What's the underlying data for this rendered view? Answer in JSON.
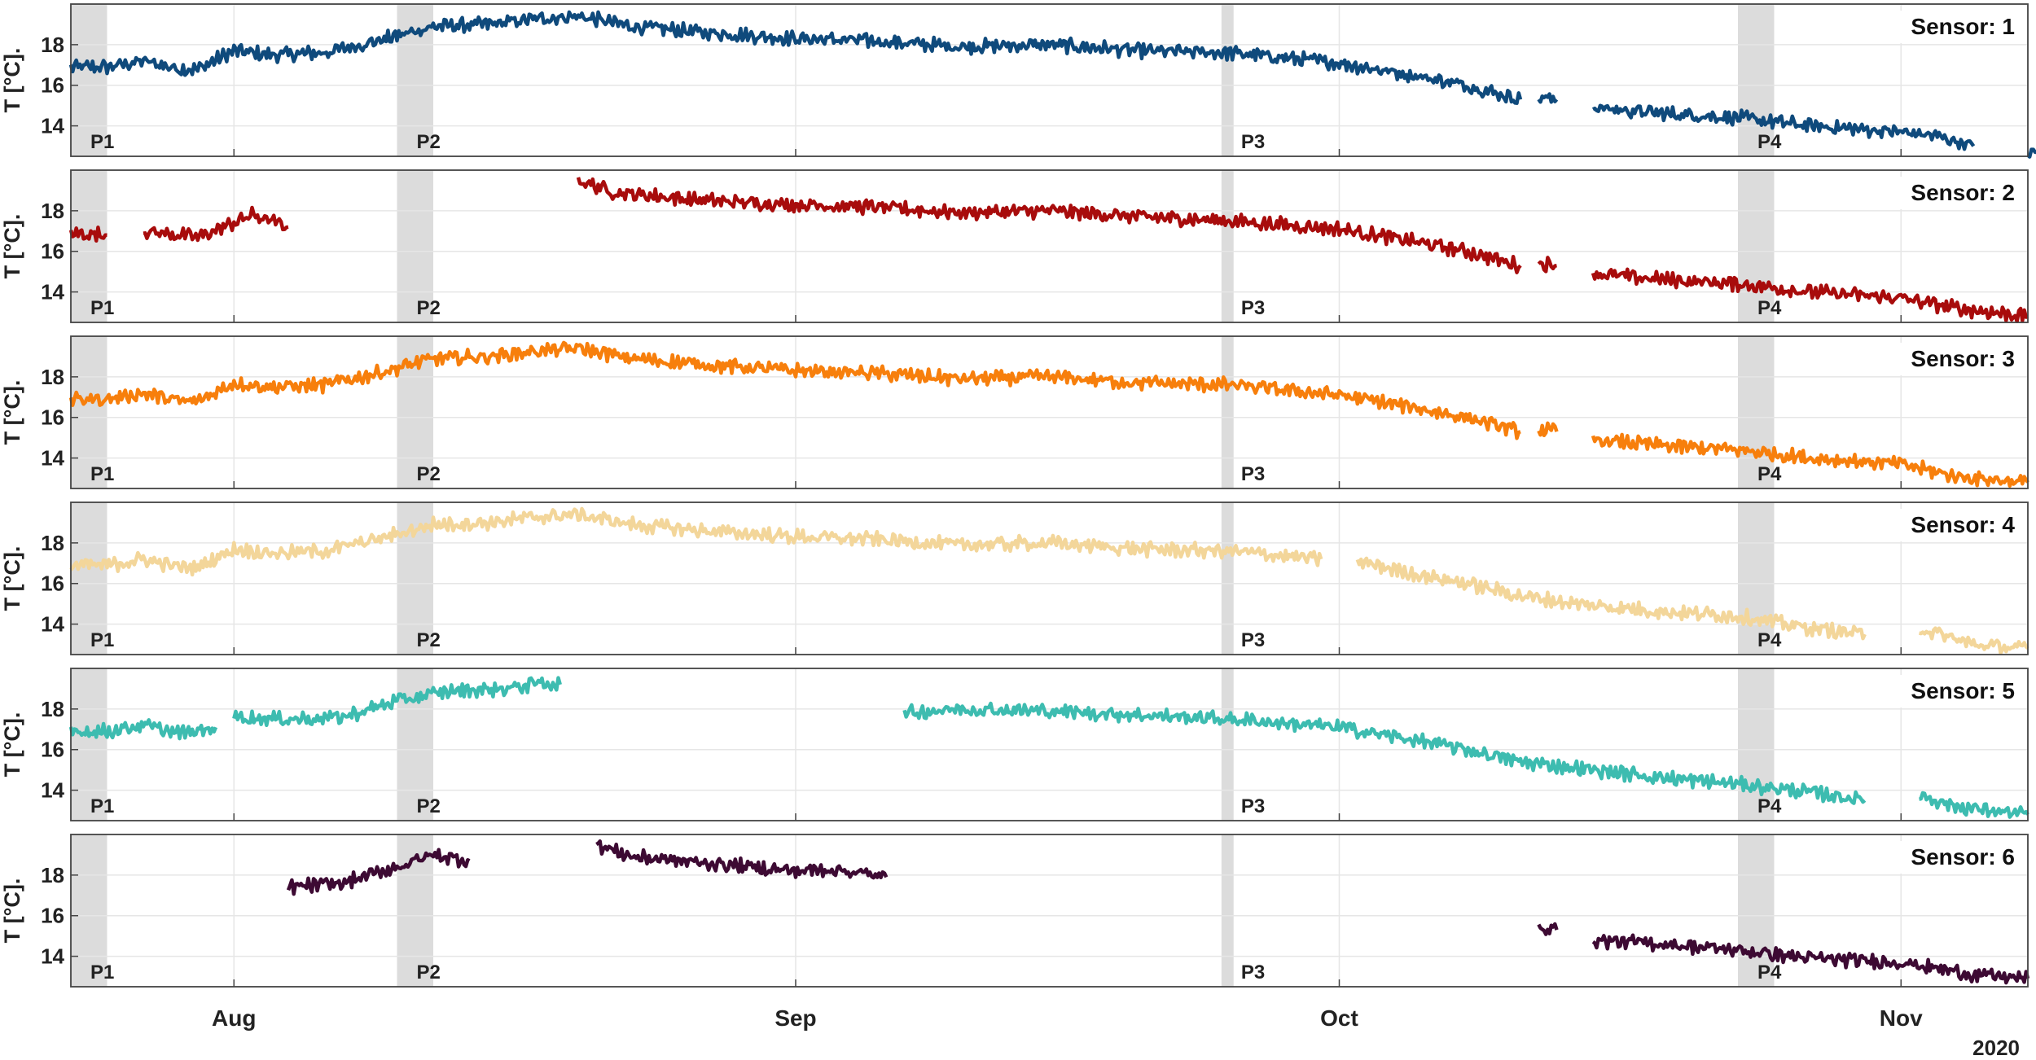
{
  "chart_data": {
    "type": "line",
    "layout": "stacked-subplots",
    "ylabel": "T [°C].",
    "year_label": "2020",
    "x_range": [
      "2020-07-23",
      "2020-11-08"
    ],
    "x_ticks": [
      {
        "label": "Aug",
        "date": "2020-08-01"
      },
      {
        "label": "Sep",
        "date": "2020-09-01"
      },
      {
        "label": "Oct",
        "date": "2020-10-01"
      },
      {
        "label": "Nov",
        "date": "2020-11-01"
      }
    ],
    "ylim": [
      12.5,
      20
    ],
    "y_ticks": [
      14,
      16,
      18
    ],
    "grid": true,
    "periods": [
      {
        "label": "P1",
        "start": "2020-07-23",
        "end": "2020-07-25"
      },
      {
        "label": "P2",
        "start": "2020-08-10",
        "end": "2020-08-12"
      },
      {
        "label": "P3",
        "start": "2020-09-24 12:00",
        "end": "2020-09-25 04:00"
      },
      {
        "label": "P4",
        "start": "2020-10-23",
        "end": "2020-10-25"
      }
    ],
    "subplots": [
      {
        "title": "Sensor: 1",
        "color": "#0f4a7c",
        "segments": [
          [
            [
              "2020-07-23",
              16.9
            ],
            [
              "2020-07-25",
              16.9
            ],
            [
              "2020-07-27",
              17.2
            ],
            [
              "2020-07-29",
              16.8
            ],
            [
              "2020-07-30",
              16.8
            ],
            [
              "2020-08-01",
              17.7
            ],
            [
              "2020-08-03",
              17.5
            ],
            [
              "2020-08-06",
              17.6
            ],
            [
              "2020-08-09",
              18.2
            ],
            [
              "2020-08-12",
              18.9
            ],
            [
              "2020-08-15",
              19.0
            ],
            [
              "2020-08-18",
              19.3
            ],
            [
              "2020-08-20",
              19.4
            ],
            [
              "2020-08-23",
              18.9
            ],
            [
              "2020-08-27",
              18.6
            ],
            [
              "2020-09-01",
              18.3
            ],
            [
              "2020-09-05",
              18.2
            ],
            [
              "2020-09-10",
              17.9
            ],
            [
              "2020-09-15",
              18.0
            ],
            [
              "2020-09-20",
              17.7
            ],
            [
              "2020-09-25",
              17.6
            ],
            [
              "2020-10-01",
              17.1
            ],
            [
              "2020-10-05",
              16.5
            ],
            [
              "2020-10-08",
              16.0
            ],
            [
              "2020-10-11",
              15.3
            ]
          ],
          [
            [
              "2020-10-12",
              15.4
            ],
            [
              "2020-10-13",
              15.3
            ]
          ],
          [
            [
              "2020-10-15",
              14.9
            ],
            [
              "2020-10-19",
              14.6
            ],
            [
              "2020-10-23",
              14.4
            ],
            [
              "2020-10-27",
              14.0
            ],
            [
              "2020-11-01",
              13.7
            ],
            [
              "2020-11-03",
              13.5
            ],
            [
              "2020-11-05",
              13.0
            ]
          ],
          [
            [
              "2020-11-08",
              12.7
            ],
            [
              "2020-11-08 12:00",
              12.7
            ]
          ]
        ]
      },
      {
        "title": "Sensor: 2",
        "color": "#a80c0c",
        "segments": [
          [
            [
              "2020-07-23",
              16.9
            ],
            [
              "2020-07-25",
              16.8
            ]
          ],
          [
            [
              "2020-07-27",
              17.0
            ],
            [
              "2020-07-30",
              16.7
            ],
            [
              "2020-08-01",
              17.4
            ],
            [
              "2020-08-02",
              17.8
            ],
            [
              "2020-08-04",
              17.2
            ]
          ],
          [
            [
              "2020-08-20",
              19.5
            ],
            [
              "2020-08-22",
              18.9
            ],
            [
              "2020-08-27",
              18.5
            ],
            [
              "2020-09-01",
              18.3
            ],
            [
              "2020-09-05",
              18.2
            ],
            [
              "2020-09-10",
              17.9
            ],
            [
              "2020-09-15",
              18.0
            ],
            [
              "2020-09-20",
              17.7
            ],
            [
              "2020-09-25",
              17.5
            ],
            [
              "2020-10-01",
              17.1
            ],
            [
              "2020-10-05",
              16.5
            ],
            [
              "2020-10-08",
              16.0
            ],
            [
              "2020-10-11",
              15.3
            ]
          ],
          [
            [
              "2020-10-12",
              15.4
            ],
            [
              "2020-10-13",
              15.3
            ]
          ],
          [
            [
              "2020-10-15",
              14.9
            ],
            [
              "2020-10-19",
              14.6
            ],
            [
              "2020-10-23",
              14.4
            ],
            [
              "2020-10-27",
              14.0
            ],
            [
              "2020-11-01",
              13.7
            ],
            [
              "2020-11-04",
              13.2
            ],
            [
              "2020-11-08",
              12.8
            ]
          ]
        ]
      },
      {
        "title": "Sensor: 3",
        "color": "#f77f0c",
        "segments": [
          [
            [
              "2020-07-23",
              16.9
            ],
            [
              "2020-07-25",
              16.9
            ],
            [
              "2020-07-27",
              17.2
            ],
            [
              "2020-07-29",
              16.8
            ],
            [
              "2020-07-30",
              16.8
            ],
            [
              "2020-08-01",
              17.7
            ],
            [
              "2020-08-03",
              17.5
            ],
            [
              "2020-08-06",
              17.6
            ],
            [
              "2020-08-09",
              18.2
            ],
            [
              "2020-08-12",
              18.9
            ],
            [
              "2020-08-15",
              19.0
            ],
            [
              "2020-08-18",
              19.3
            ],
            [
              "2020-08-20",
              19.4
            ],
            [
              "2020-08-23",
              18.9
            ],
            [
              "2020-08-27",
              18.6
            ],
            [
              "2020-09-01",
              18.3
            ],
            [
              "2020-09-05",
              18.2
            ],
            [
              "2020-09-10",
              17.9
            ],
            [
              "2020-09-15",
              18.0
            ],
            [
              "2020-09-20",
              17.7
            ],
            [
              "2020-09-25",
              17.6
            ],
            [
              "2020-10-01",
              17.1
            ],
            [
              "2020-10-05",
              16.5
            ],
            [
              "2020-10-08",
              16.0
            ],
            [
              "2020-10-11",
              15.3
            ]
          ],
          [
            [
              "2020-10-12",
              15.4
            ],
            [
              "2020-10-13",
              15.3
            ]
          ],
          [
            [
              "2020-10-15",
              14.9
            ],
            [
              "2020-10-19",
              14.6
            ],
            [
              "2020-10-23",
              14.4
            ],
            [
              "2020-10-27",
              14.0
            ],
            [
              "2020-11-01",
              13.7
            ],
            [
              "2020-11-04",
              13.1
            ],
            [
              "2020-11-08",
              12.8
            ]
          ]
        ]
      },
      {
        "title": "Sensor: 4",
        "color": "#f3d69a",
        "segments": [
          [
            [
              "2020-07-23",
              16.9
            ],
            [
              "2020-07-25",
              16.9
            ],
            [
              "2020-07-27",
              17.2
            ],
            [
              "2020-07-29",
              16.8
            ],
            [
              "2020-07-30",
              16.8
            ],
            [
              "2020-08-01",
              17.7
            ],
            [
              "2020-08-03",
              17.5
            ],
            [
              "2020-08-06",
              17.6
            ],
            [
              "2020-08-09",
              18.2
            ],
            [
              "2020-08-12",
              18.9
            ],
            [
              "2020-08-15",
              19.0
            ],
            [
              "2020-08-18",
              19.3
            ],
            [
              "2020-08-20",
              19.4
            ],
            [
              "2020-08-23",
              18.9
            ],
            [
              "2020-08-27",
              18.6
            ],
            [
              "2020-09-01",
              18.3
            ],
            [
              "2020-09-05",
              18.2
            ],
            [
              "2020-09-10",
              17.9
            ],
            [
              "2020-09-15",
              18.0
            ],
            [
              "2020-09-20",
              17.7
            ],
            [
              "2020-09-25",
              17.6
            ],
            [
              "2020-09-30",
              17.2
            ]
          ],
          [
            [
              "2020-10-02",
              17.1
            ],
            [
              "2020-10-05",
              16.5
            ],
            [
              "2020-10-08",
              16.0
            ],
            [
              "2020-10-11",
              15.4
            ],
            [
              "2020-10-14",
              15.0
            ],
            [
              "2020-10-19",
              14.6
            ],
            [
              "2020-10-23",
              14.4
            ],
            [
              "2020-10-27",
              13.8
            ],
            [
              "2020-10-30",
              13.5
            ]
          ],
          [
            [
              "2020-11-02",
              13.8
            ],
            [
              "2020-11-05",
              13.0
            ],
            [
              "2020-11-08",
              12.8
            ]
          ]
        ]
      },
      {
        "title": "Sensor: 5",
        "color": "#3dbcb0",
        "segments": [
          [
            [
              "2020-07-23",
              16.9
            ],
            [
              "2020-07-25",
              16.9
            ],
            [
              "2020-07-27",
              17.2
            ],
            [
              "2020-07-29",
              16.8
            ],
            [
              "2020-07-30",
              16.9
            ],
            [
              "2020-07-31",
              17.1
            ]
          ],
          [
            [
              "2020-08-01",
              17.6
            ],
            [
              "2020-08-04",
              17.5
            ],
            [
              "2020-08-07",
              17.6
            ],
            [
              "2020-08-10",
              18.4
            ],
            [
              "2020-08-13",
              18.9
            ],
            [
              "2020-08-16",
              19.0
            ],
            [
              "2020-08-18",
              19.3
            ],
            [
              "2020-08-19",
              19.2
            ]
          ],
          [
            [
              "2020-09-07",
              17.8
            ],
            [
              "2020-09-10",
              18.0
            ],
            [
              "2020-09-15",
              17.9
            ],
            [
              "2020-09-20",
              17.7
            ],
            [
              "2020-09-25",
              17.5
            ],
            [
              "2020-10-01",
              17.1
            ],
            [
              "2020-10-05",
              16.5
            ],
            [
              "2020-10-08",
              16.0
            ],
            [
              "2020-10-11",
              15.4
            ],
            [
              "2020-10-14",
              15.1
            ],
            [
              "2020-10-19",
              14.6
            ],
            [
              "2020-10-23",
              14.3
            ],
            [
              "2020-10-27",
              13.9
            ],
            [
              "2020-10-30",
              13.5
            ]
          ],
          [
            [
              "2020-11-02",
              13.8
            ],
            [
              "2020-11-04",
              13.2
            ],
            [
              "2020-11-08",
              12.8
            ]
          ]
        ]
      },
      {
        "title": "Sensor: 6",
        "color": "#3d0a33",
        "segments": [
          [
            [
              "2020-08-04",
              17.4
            ],
            [
              "2020-08-07",
              17.6
            ],
            [
              "2020-08-10",
              18.4
            ],
            [
              "2020-08-12",
              19.0
            ],
            [
              "2020-08-14",
              18.7
            ]
          ],
          [
            [
              "2020-08-21",
              19.5
            ],
            [
              "2020-08-23",
              18.9
            ],
            [
              "2020-08-27",
              18.6
            ],
            [
              "2020-09-01",
              18.2
            ],
            [
              "2020-09-03",
              18.3
            ],
            [
              "2020-09-06",
              17.9
            ]
          ],
          [
            [
              "2020-10-12",
              15.5
            ],
            [
              "2020-10-13",
              15.3
            ]
          ],
          [
            [
              "2020-10-15",
              14.8
            ],
            [
              "2020-10-19",
              14.6
            ],
            [
              "2020-10-23",
              14.3
            ],
            [
              "2020-10-27",
              13.9
            ],
            [
              "2020-11-01",
              13.7
            ],
            [
              "2020-11-05",
              13.1
            ],
            [
              "2020-11-08",
              12.9
            ]
          ]
        ]
      }
    ]
  }
}
